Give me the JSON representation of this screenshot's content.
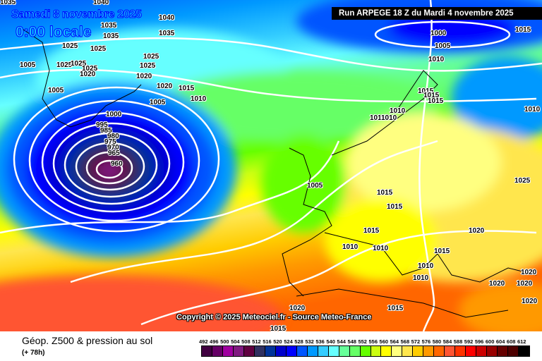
{
  "header": {
    "date": "Samedi 8 novembre 2025",
    "time": "0:00 locale",
    "run": "Run ARPEGE 18 Z du Mardi 4 novembre 2025"
  },
  "copyright": "Copyright © 2025 Meteociel.fr - Source Meteo-France",
  "footer": {
    "title": "Géop. Z500 & pression au sol",
    "subtitle": "(+ 78h)"
  },
  "legend": {
    "labels": [
      "492",
      "496",
      "500",
      "504",
      "508",
      "512",
      "516",
      "520",
      "524",
      "528",
      "532",
      "536",
      "540",
      "544",
      "548",
      "552",
      "556",
      "560",
      "564",
      "568",
      "572",
      "576",
      "580",
      "584",
      "588",
      "592",
      "596",
      "600",
      "604",
      "608",
      "612"
    ],
    "colors": [
      "#400040",
      "#660066",
      "#a000a0",
      "#801a80",
      "#600040",
      "#303060",
      "#003399",
      "#0000cc",
      "#0000ff",
      "#0055ff",
      "#0099ff",
      "#33ccff",
      "#66ffff",
      "#66ff99",
      "#66ff66",
      "#66ff00",
      "#ccff11",
      "#ffff00",
      "#ffff80",
      "#ffe64d",
      "#ffcc00",
      "#ff9900",
      "#ff6600",
      "#ff5533",
      "#ff3300",
      "#ff0000",
      "#cc0000",
      "#990000",
      "#660000",
      "#4d0000",
      "#000000"
    ]
  },
  "isobar_labels": [
    "1035",
    "1040",
    "1035",
    "1040",
    "1035",
    "1035",
    "1025",
    "1025",
    "1025",
    "1005",
    "1025",
    "1025",
    "1020",
    "1025",
    "1025",
    "1020",
    "1020",
    "1015",
    "1005",
    "1010",
    "1005",
    "1000",
    "995",
    "985",
    "980",
    "975",
    "970",
    "965",
    "960",
    "1000",
    "1005",
    "1010",
    "1015",
    "1015",
    "1015",
    "1015",
    "1010",
    "1010",
    "1010",
    "1010",
    "1005",
    "1015",
    "1015",
    "1025",
    "1015",
    "1020",
    "1010",
    "1010",
    "1015",
    "1010",
    "1010",
    "1020",
    "1020",
    "1020",
    "1020",
    "1015",
    "1020",
    "1015"
  ]
}
